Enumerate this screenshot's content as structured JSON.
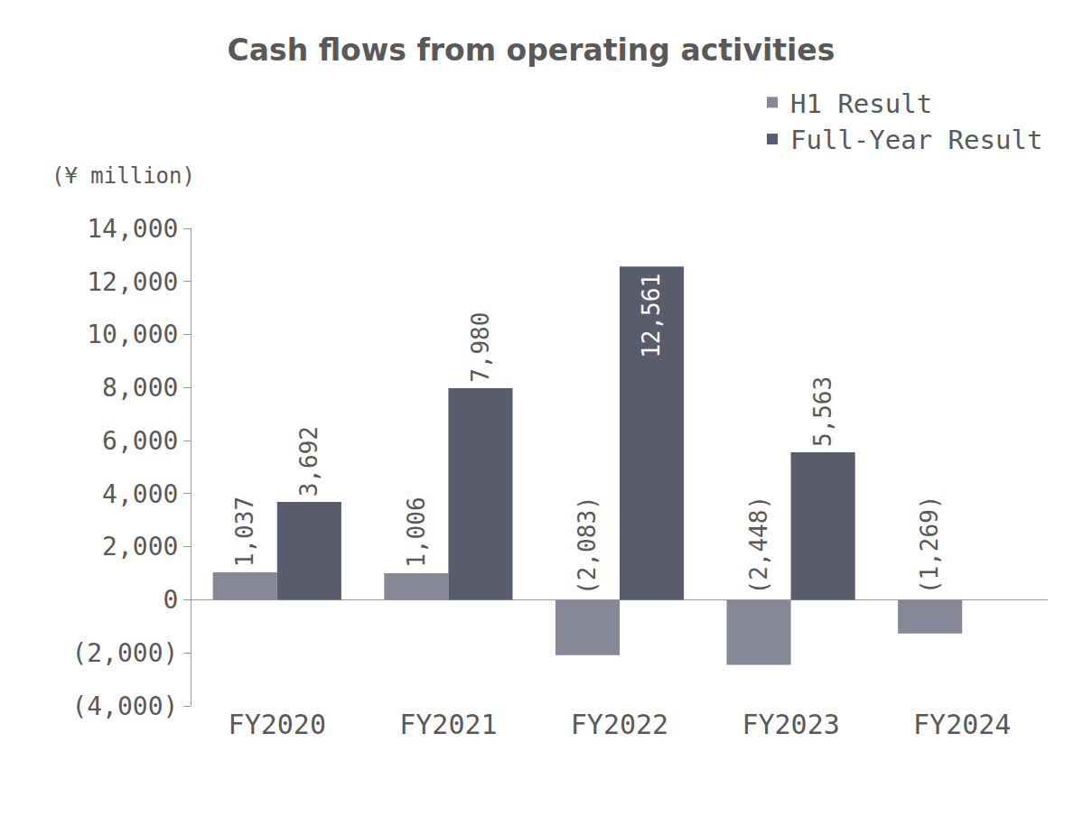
{
  "chart_data": {
    "type": "bar",
    "title": "Cash flows from operating activities",
    "ylabel": "(¥ million)",
    "categories": [
      "FY2020",
      "FY2021",
      "FY2022",
      "FY2023",
      "FY2024"
    ],
    "series": [
      {
        "name": "H1 Result",
        "color": "#868898",
        "values": [
          1037,
          1006,
          -2083,
          -2448,
          -1269
        ],
        "value_labels": [
          "1,037",
          "1,006",
          "(2,083)",
          "(2,448)",
          "(1,269)"
        ]
      },
      {
        "name": "Full-Year Result",
        "color": "#585c6d",
        "values": [
          3692,
          7980,
          12561,
          5563,
          null
        ],
        "value_labels": [
          "3,692",
          "7,980",
          "12,561",
          "5,563",
          null
        ]
      }
    ],
    "ylim": [
      -4000,
      14000
    ],
    "yticks": [
      {
        "value": -4000,
        "label": "(4,000)"
      },
      {
        "value": -2000,
        "label": "(2,000)"
      },
      0,
      {
        "value": 2000,
        "label": "2,000"
      },
      {
        "value": 4000,
        "label": "4,000"
      },
      {
        "value": 6000,
        "label": "6,000"
      },
      {
        "value": 8000,
        "label": "8,000"
      },
      {
        "value": 10000,
        "label": "10,000"
      },
      {
        "value": 12000,
        "label": "12,000"
      },
      {
        "value": 14000,
        "label": "14,000"
      }
    ],
    "grid": false,
    "legend": "upper right",
    "data_labels": true
  }
}
